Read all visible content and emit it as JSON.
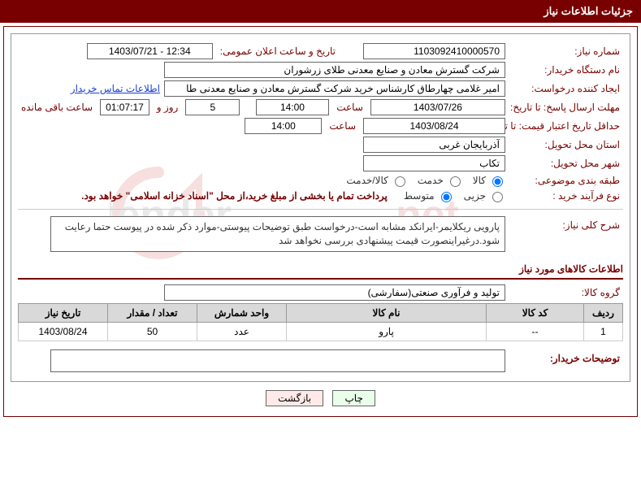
{
  "header": {
    "title": "جزئیات اطلاعات نیاز"
  },
  "labels": {
    "need_number": "شماره نیاز:",
    "announce_datetime": "تاریخ و ساعت اعلان عمومی:",
    "buyer_org": "نام دستگاه خریدار:",
    "requester": "ایجاد کننده درخواست:",
    "buyer_contact": "اطلاعات تماس خریدار",
    "reply_deadline": "مهلت ارسال پاسخ: تا تاریخ:",
    "hour": "ساعت",
    "days_and": "روز و",
    "remaining": "ساعت باقی مانده",
    "min_valid": "حداقل تاریخ اعتبار قیمت: تا تاریخ:",
    "delivery_province": "استان محل تحویل:",
    "delivery_city": "شهر محل تحویل:",
    "subject_class": "طبقه بندی موضوعی:",
    "purchase_type": "نوع فرآیند خرید :",
    "general_desc": "شرح کلی نیاز:",
    "items_section": "اطلاعات کالاهای مورد نیاز",
    "goods_group": "گروه کالا:",
    "buyer_notes": "توضیحات خریدار:"
  },
  "values": {
    "need_number": "1103092410000570",
    "announce_datetime": "1403/07/21 - 12:34",
    "buyer_org": "شرکت گسترش معادن و صنایع معدنی طلای زرشوران",
    "requester": "امیر  غلامی چهارطاق کارشناس خرید شرکت گسترش معادن و صنایع معدنی طا",
    "reply_date": "1403/07/26",
    "reply_time": "14:00",
    "days_left": "5",
    "countdown": "01:07:17",
    "min_valid_date": "1403/08/24",
    "min_valid_time": "14:00",
    "province": "آذربایجان غربی",
    "city": "تکاب",
    "general_desc": "پارویی ریکلایمر-ایرانکد مشابه است-درخواست طبق توضیحات پیوستی-موارد ذکر شده در پیوست حتما رعایت شود.درغیراینصورت قیمت پیشنهادی بررسی نخواهد شد",
    "goods_group": "تولید و فرآوری صنعتی(سفارشی)",
    "buyer_notes": "",
    "purchase_note": "پرداخت تمام یا بخشی از مبلغ خرید،از محل \"اسناد خزانه اسلامی\" خواهد بود."
  },
  "radios": {
    "subject": {
      "opt_goods": "کالا",
      "opt_service": "خدمت",
      "opt_both": "کالا/خدمت",
      "selected": "goods"
    },
    "purchase": {
      "opt_partial": "جزیی",
      "opt_medium": "متوسط",
      "selected": "medium"
    }
  },
  "table": {
    "headers": {
      "row": "ردیف",
      "code": "کد کالا",
      "name": "نام کالا",
      "unit": "واحد شمارش",
      "qty": "تعداد / مقدار",
      "need_date": "تاریخ نیاز"
    },
    "rows": [
      {
        "row": "1",
        "code": "--",
        "name": "پارو",
        "unit": "عدد",
        "qty": "50",
        "need_date": "1403/08/24"
      }
    ]
  },
  "buttons": {
    "print": "چاپ",
    "back": "بازگشت"
  },
  "style": {
    "brand_color": "#780000",
    "border_color": "#999999"
  }
}
